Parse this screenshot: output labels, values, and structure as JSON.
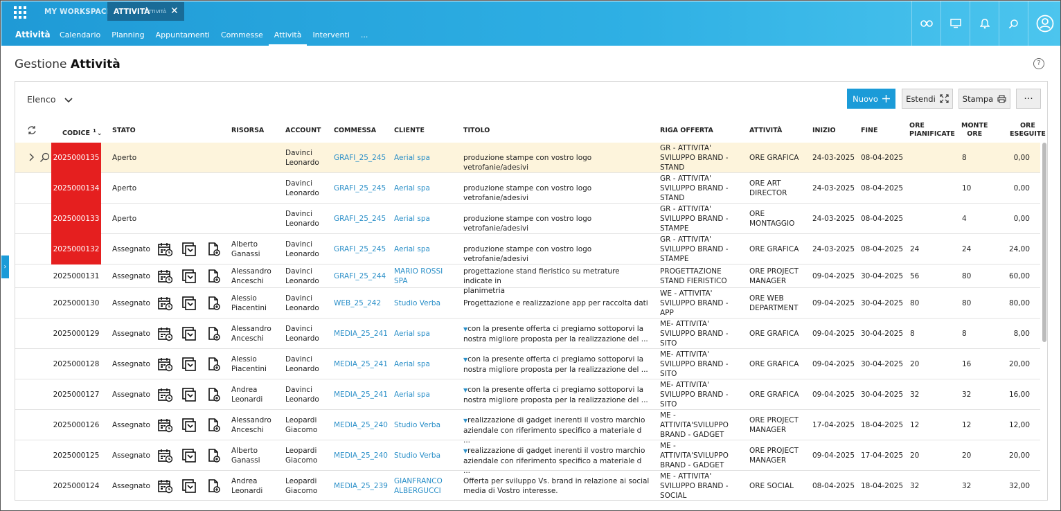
{
  "header": {
    "workspace_label": "MY WORKSPACE",
    "active_tab_title": "ATTIVITÀ",
    "active_tab_sub": "ATTIVITÀ",
    "app_name": "Attività",
    "nav": [
      "Calendario",
      "Planning",
      "Appuntamenti",
      "Commesse",
      "Attività",
      "Interventi",
      "..."
    ],
    "nav_active_index": 4
  },
  "page": {
    "title_prefix": "Gestione",
    "title_main": "Attività",
    "view_selector": "Elenco",
    "buttons": {
      "new": "Nuovo",
      "extend": "Estendi",
      "print": "Stampa",
      "more": "···"
    }
  },
  "table": {
    "columns": {
      "codice": "CODICE",
      "sort_index": "1",
      "stato": "STATO",
      "risorsa": "RISORSA",
      "account": "ACCOUNT",
      "commessa": "COMMESSA",
      "cliente": "CLIENTE",
      "titolo": "TITOLO",
      "riga": "RIGA OFFERTA",
      "attivita": "ATTIVITÀ",
      "inizio": "INIZIO",
      "fine": "FINE",
      "ore_pian_1": "ORE",
      "ore_pian_2": "PIANIFICATE",
      "monte_1": "MONTE",
      "monte_2": "ORE",
      "eseg_1": "ORE",
      "eseg_2": "ESEGUITE"
    },
    "rows": [
      {
        "codice": "2025000135",
        "red": true,
        "stato": "Aperto",
        "icons": false,
        "risorsa": [
          "",
          ""
        ],
        "account": [
          "Davinci",
          "Leonardo"
        ],
        "commessa": "GRAFI_25_245",
        "cliente": [
          "Aerial spa",
          ""
        ],
        "titolo": [
          "produzione stampe con vostro logo vetrofanie/adesivi",
          ""
        ],
        "riga": [
          "GR - ATTIVITA'",
          "SVILUPPO BRAND -",
          "STAND"
        ],
        "attivita": [
          "ORE GRAFICA",
          ""
        ],
        "inizio": "24-03-2025",
        "fine": "08-04-2025",
        "ore_pian": "",
        "monte": "8",
        "eseg": "0,00",
        "selected": true
      },
      {
        "codice": "2025000134",
        "red": true,
        "stato": "Aperto",
        "icons": false,
        "risorsa": [
          "",
          ""
        ],
        "account": [
          "Davinci",
          "Leonardo"
        ],
        "commessa": "GRAFI_25_245",
        "cliente": [
          "Aerial spa",
          ""
        ],
        "titolo": [
          "produzione stampe con vostro logo vetrofanie/adesivi",
          ""
        ],
        "riga": [
          "GR - ATTIVITA'",
          "SVILUPPO BRAND -",
          "STAND"
        ],
        "attivita": [
          "ORE ART",
          "DIRECTOR"
        ],
        "inizio": "24-03-2025",
        "fine": "08-04-2025",
        "ore_pian": "",
        "monte": "10",
        "eseg": "0,00"
      },
      {
        "codice": "2025000133",
        "red": true,
        "stato": "Aperto",
        "icons": false,
        "risorsa": [
          "",
          ""
        ],
        "account": [
          "Davinci",
          "Leonardo"
        ],
        "commessa": "GRAFI_25_245",
        "cliente": [
          "Aerial spa",
          ""
        ],
        "titolo": [
          "produzione stampe con vostro logo vetrofanie/adesivi",
          ""
        ],
        "riga": [
          "GR - ATTIVITA'",
          "SVILUPPO BRAND -",
          "STAMPE"
        ],
        "attivita": [
          "ORE",
          "MONTAGGIO"
        ],
        "inizio": "24-03-2025",
        "fine": "08-04-2025",
        "ore_pian": "",
        "monte": "4",
        "eseg": "0,00"
      },
      {
        "codice": "2025000132",
        "red": true,
        "stato": "Assegnato",
        "icons": true,
        "risorsa": [
          "Alberto",
          "Ganassi"
        ],
        "account": [
          "Davinci",
          "Leonardo"
        ],
        "commessa": "GRAFI_25_245",
        "cliente": [
          "Aerial spa",
          ""
        ],
        "titolo": [
          "produzione stampe con vostro logo vetrofanie/adesivi",
          ""
        ],
        "riga": [
          "GR - ATTIVITA'",
          "SVILUPPO BRAND -",
          "STAMPE"
        ],
        "attivita": [
          "ORE GRAFICA",
          ""
        ],
        "inizio": "24-03-2025",
        "fine": "08-04-2025",
        "ore_pian": "24",
        "monte": "24",
        "eseg": "24,00"
      },
      {
        "codice": "2025000131",
        "red": false,
        "stato": "Assegnato",
        "icons": true,
        "risorsa": [
          "Alessandro",
          "Anceschi"
        ],
        "account": [
          "Davinci",
          "Leonardo"
        ],
        "commessa": "GRAFI_25_244",
        "cliente": [
          "MARIO ROSSI",
          "SPA"
        ],
        "titolo": [
          "progettazione stand fieristico su metrature indicate in",
          "planimetria"
        ],
        "riga": [
          "PROGETTAZIONE",
          "STAND FIERISTICO",
          ""
        ],
        "attivita": [
          "ORE PROJECT",
          "MANAGER"
        ],
        "inizio": "09-04-2025",
        "fine": "30-04-2025",
        "ore_pian": "56",
        "monte": "80",
        "eseg": "60,00"
      },
      {
        "codice": "2025000130",
        "red": false,
        "stato": "Assegnato",
        "icons": true,
        "risorsa": [
          "Alessio",
          "Piacentini"
        ],
        "account": [
          "Davinci",
          "Leonardo"
        ],
        "commessa": "WEB_25_242",
        "cliente": [
          "Studio Verba",
          ""
        ],
        "titolo": [
          "Progettazione e realizzazione app per raccolta dati",
          ""
        ],
        "riga": [
          "WE - ATTIVITA'",
          "SVILUPPO BRAND -",
          "APP"
        ],
        "attivita": [
          "ORE WEB",
          "DEPARTMENT"
        ],
        "inizio": "09-04-2025",
        "fine": "30-04-2025",
        "ore_pian": "80",
        "monte": "80",
        "eseg": "80,00"
      },
      {
        "codice": "2025000129",
        "red": false,
        "stato": "Assegnato",
        "icons": true,
        "risorsa": [
          "Alessandro",
          "Anceschi"
        ],
        "account": [
          "Davinci",
          "Leonardo"
        ],
        "commessa": "MEDIA_25_241",
        "cliente": [
          "Aerial spa",
          ""
        ],
        "titolo": [
          "con la presente offerta ci pregiamo sottoporvi la",
          "nostra migliore proposta per la realizzazione del ..."
        ],
        "caret": true,
        "riga": [
          "ME- ATTIVITA'",
          "SVILUPPO BRAND -",
          "SITO"
        ],
        "attivita": [
          "ORE GRAFICA",
          ""
        ],
        "inizio": "09-04-2025",
        "fine": "30-04-2025",
        "ore_pian": "8",
        "monte": "8",
        "eseg": "8,00"
      },
      {
        "codice": "2025000128",
        "red": false,
        "stato": "Assegnato",
        "icons": true,
        "risorsa": [
          "Alessio",
          "Piacentini"
        ],
        "account": [
          "Davinci",
          "Leonardo"
        ],
        "commessa": "MEDIA_25_241",
        "cliente": [
          "Aerial spa",
          ""
        ],
        "titolo": [
          "con la presente offerta ci pregiamo sottoporvi la",
          "nostra migliore proposta per la realizzazione del ..."
        ],
        "caret": true,
        "riga": [
          "ME- ATTIVITA'",
          "SVILUPPO BRAND -",
          "SITO"
        ],
        "attivita": [
          "ORE GRAFICA",
          ""
        ],
        "inizio": "09-04-2025",
        "fine": "30-04-2025",
        "ore_pian": "20",
        "monte": "16",
        "eseg": "20,00"
      },
      {
        "codice": "2025000127",
        "red": false,
        "stato": "Assegnato",
        "icons": true,
        "risorsa": [
          "Andrea",
          "Leonardi"
        ],
        "account": [
          "Davinci",
          "Leonardo"
        ],
        "commessa": "MEDIA_25_241",
        "cliente": [
          "Aerial spa",
          ""
        ],
        "titolo": [
          "con la presente offerta ci pregiamo sottoporvi la",
          "nostra migliore proposta per la realizzazione del ..."
        ],
        "caret": true,
        "riga": [
          "ME- ATTIVITA'",
          "SVILUPPO BRAND -",
          "SITO"
        ],
        "attivita": [
          "ORE GRAFICA",
          ""
        ],
        "inizio": "09-04-2025",
        "fine": "30-04-2025",
        "ore_pian": "32",
        "monte": "32",
        "eseg": "16,00"
      },
      {
        "codice": "2025000126",
        "red": false,
        "stato": "Assegnato",
        "icons": true,
        "risorsa": [
          "Alessandro",
          "Anceschi"
        ],
        "account": [
          "Leopardi",
          "Giacomo"
        ],
        "commessa": "MEDIA_25_240",
        "cliente": [
          "Studio Verba",
          ""
        ],
        "titolo": [
          "realizzazione di gadget inerenti il vostro marchio",
          "aziendale con riferimento specifico a materiale d ..."
        ],
        "caret": true,
        "riga": [
          "ME -",
          "ATTIVITA'SVILUPPO",
          "BRAND - GADGET"
        ],
        "attivita": [
          "ORE PROJECT",
          "MANAGER"
        ],
        "inizio": "17-04-2025",
        "fine": "18-04-2025",
        "ore_pian": "12",
        "monte": "12",
        "eseg": "12,00"
      },
      {
        "codice": "2025000125",
        "red": false,
        "stato": "Assegnato",
        "icons": true,
        "risorsa": [
          "Alberto",
          "Ganassi"
        ],
        "account": [
          "Leopardi",
          "Giacomo"
        ],
        "commessa": "MEDIA_25_240",
        "cliente": [
          "Studio Verba",
          ""
        ],
        "titolo": [
          "realizzazione di gadget inerenti il vostro marchio",
          "aziendale con riferimento specifico a materiale d ..."
        ],
        "caret": true,
        "riga": [
          "ME -",
          "ATTIVITA'SVILUPPO",
          "BRAND - GADGET"
        ],
        "attivita": [
          "ORE PROJECT",
          "MANAGER"
        ],
        "inizio": "09-04-2025",
        "fine": "17-04-2025",
        "ore_pian": "20",
        "monte": "20",
        "eseg": "20,00"
      },
      {
        "codice": "2025000124",
        "red": false,
        "stato": "Assegnato",
        "icons": true,
        "risorsa": [
          "Andrea",
          "Leonardi"
        ],
        "account": [
          "Leopardi",
          "Giacomo"
        ],
        "commessa": "MEDIA_25_239",
        "cliente": [
          "GIANFRANCO",
          "ALBERGUCCI"
        ],
        "titolo": [
          "Offerta per sviluppo Vs. brand in relazione ai social",
          "media di Vostro interesse."
        ],
        "riga": [
          "ME - ATTIVITA'",
          "SVILUPPO BRAND -",
          "SOCIAL"
        ],
        "attivita": [
          "ORE SOCIAL",
          ""
        ],
        "inizio": "08-04-2025",
        "fine": "18-04-2025",
        "ore_pian": "32",
        "monte": "32",
        "eseg": "32,00"
      }
    ]
  },
  "colors": {
    "header_from": "#1f9ad6",
    "header_to": "#4cc5ee",
    "accent": "#1b9bd8",
    "overdue": "#e51f1f",
    "selected_row": "#fdf4dc",
    "link": "#2a8fc8"
  }
}
